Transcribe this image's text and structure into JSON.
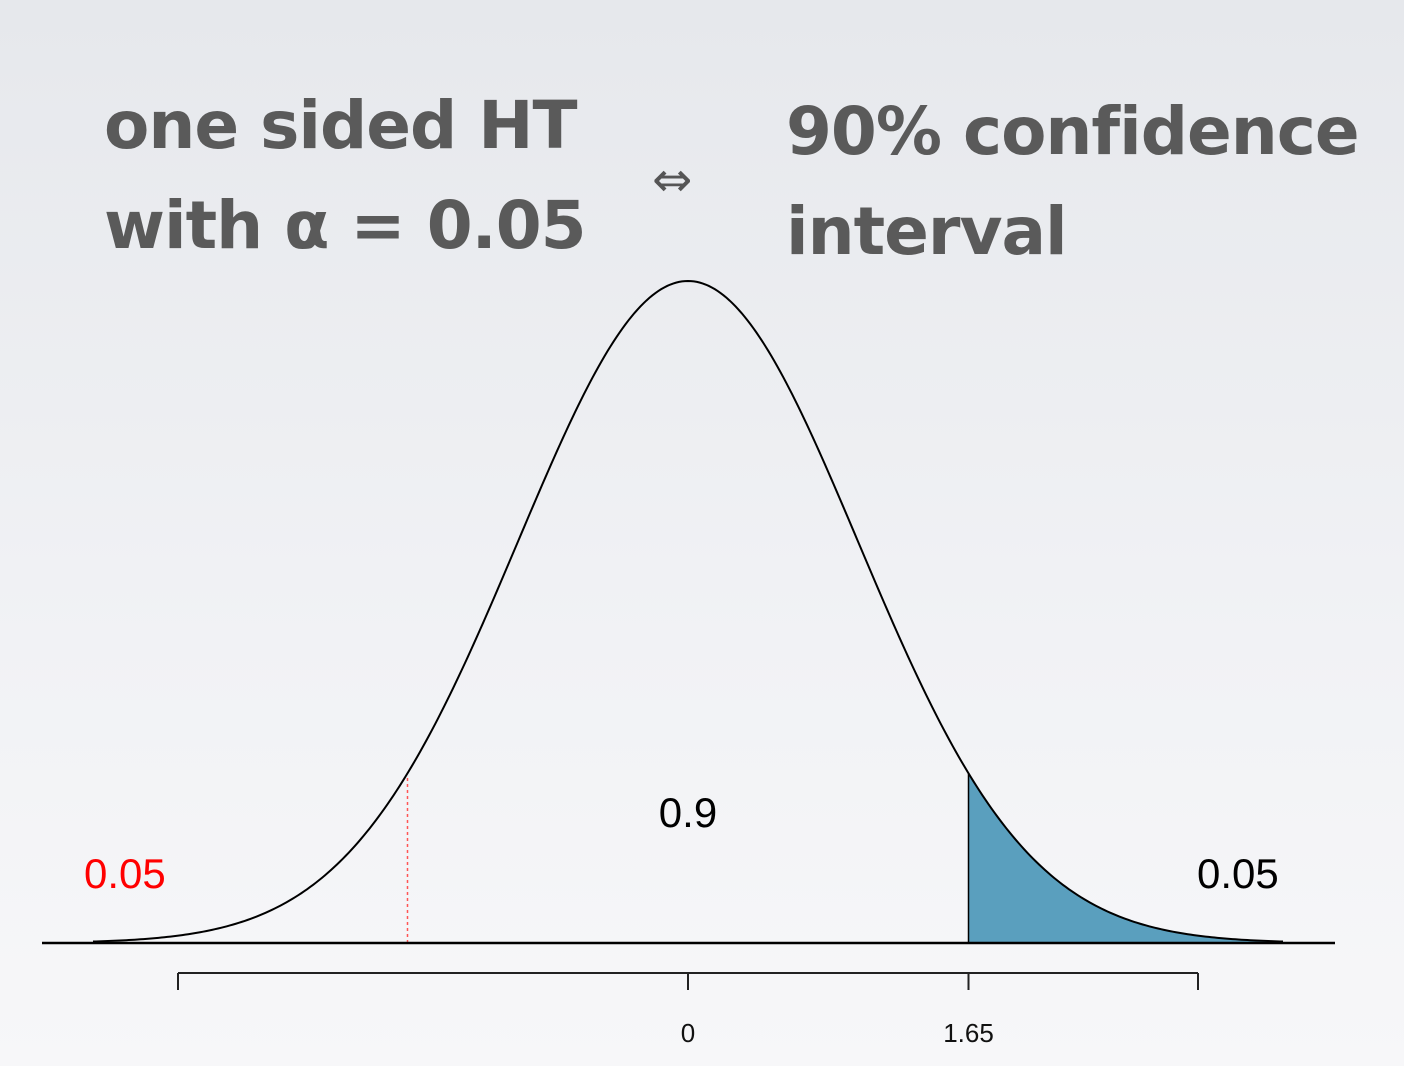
{
  "heading_left": {
    "line1": "one sided HT",
    "line2": "with α = 0.05"
  },
  "equivalence_symbol": "⇔",
  "heading_right": {
    "line1": "90% confidence",
    "line2": "interval"
  },
  "chart_data": {
    "type": "area",
    "x_range": [
      -3.5,
      3.5
    ],
    "center": 0,
    "critical_value": 1.65,
    "lower_critical_value": -1.65,
    "tick_labels": [
      "0",
      "1.65"
    ],
    "region_labels": {
      "left_tail": "0.05",
      "middle": "0.9",
      "right_tail": "0.05"
    },
    "colors": {
      "curve": "#000000",
      "shaded_tail": "#5a9fbe",
      "left_tail_label": "#ff0000",
      "dashed_marker": "#ff5555",
      "text": "#000000"
    }
  }
}
